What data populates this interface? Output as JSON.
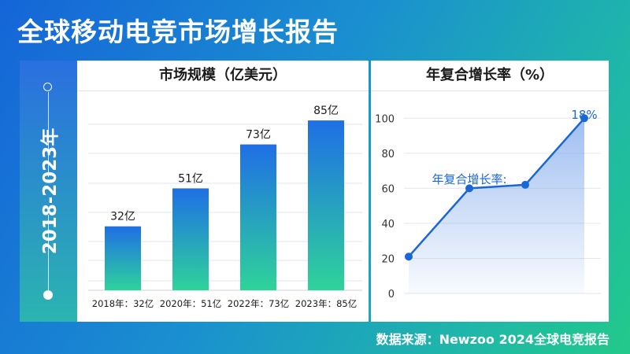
{
  "header": {
    "title": "全球移动电竞市场增长报告",
    "period": "2018-2023年"
  },
  "chart_data": [
    {
      "type": "bar",
      "title": "市场规模（亿美元）",
      "categories": [
        "2018年：32亿",
        "2020年：51亿",
        "2022年：73亿",
        "2023年：85亿"
      ],
      "values": [
        32,
        51,
        73,
        85
      ],
      "data_labels": [
        "32亿",
        "51亿",
        "73亿",
        "85亿"
      ],
      "ylim": [
        0,
        100
      ],
      "grid": true,
      "colors": {
        "top": "#1f6fe5",
        "bottom": "#2fd39a"
      }
    },
    {
      "type": "area",
      "title": "年复合增长率（%）",
      "x": [
        1,
        2,
        3,
        4
      ],
      "values": [
        21,
        60,
        62,
        100
      ],
      "ylim": [
        0,
        110
      ],
      "yticks": [
        0,
        20,
        40,
        60,
        80,
        100
      ],
      "annotations": [
        "年复合增长率:",
        "18%"
      ],
      "grid": true,
      "colors": {
        "line": "#1a66d6",
        "fill": "#7fa9ec"
      }
    }
  ],
  "footer": {
    "source": "数据来源：Newzoo 2024全球电竞报告"
  }
}
